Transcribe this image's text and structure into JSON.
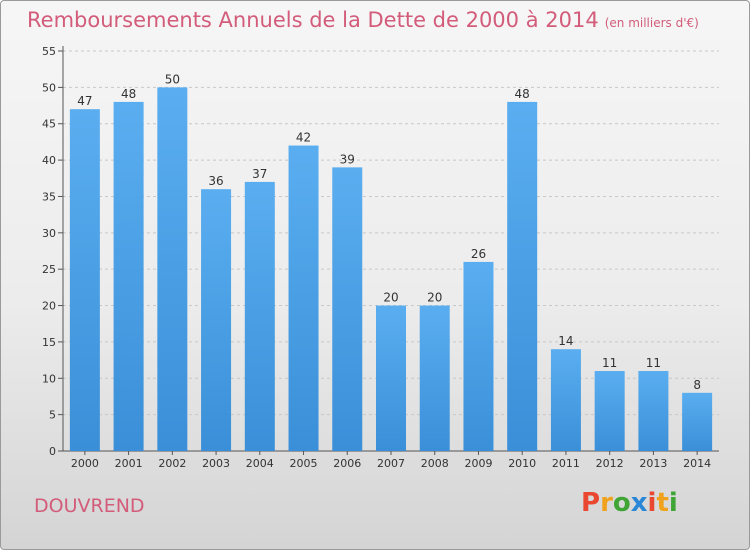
{
  "chart_data": {
    "type": "bar",
    "title": "Remboursements Annuels de la Dette de 2000 à 2014",
    "unit": "(en milliers d'€)",
    "categories": [
      "2000",
      "2001",
      "2002",
      "2003",
      "2004",
      "2005",
      "2006",
      "2007",
      "2008",
      "2009",
      "2010",
      "2011",
      "2012",
      "2013",
      "2014"
    ],
    "values": [
      47,
      48,
      50,
      36,
      37,
      42,
      39,
      20,
      20,
      26,
      48,
      14,
      11,
      11,
      8
    ],
    "ylim": [
      0,
      55
    ],
    "yticks": [
      0,
      5,
      10,
      15,
      20,
      25,
      30,
      35,
      40,
      45,
      50,
      55
    ],
    "grid": "horizontal-dashed",
    "bar_color": "#3a8fd8",
    "legend": "none"
  },
  "city": "DOUVREND",
  "logo": {
    "text": "Proxiti",
    "letter_colors": [
      "#e9472f",
      "#f0a21c",
      "#3fa535",
      "#2a86d6",
      "#e9472f",
      "#f0a21c",
      "#3fa535"
    ]
  },
  "colors": {
    "title": "#d25c7a",
    "axis": "#333333"
  }
}
